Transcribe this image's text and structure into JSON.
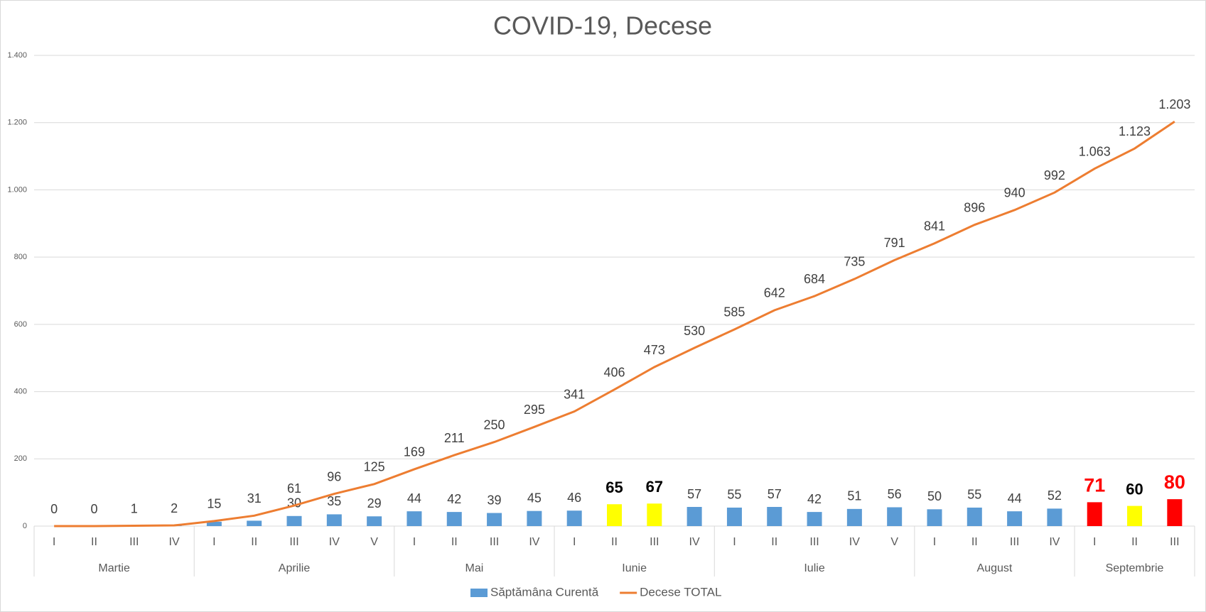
{
  "chart_data": {
    "type": "bar-line",
    "title": "COVID-19, Decese",
    "groups": [
      {
        "label": "Martie",
        "categories": [
          "I",
          "II",
          "III",
          "IV"
        ]
      },
      {
        "label": "Aprilie",
        "categories": [
          "I",
          "II",
          "III",
          "IV",
          "V"
        ]
      },
      {
        "label": "Mai",
        "categories": [
          "I",
          "II",
          "III",
          "IV"
        ]
      },
      {
        "label": "Iunie",
        "categories": [
          "I",
          "II",
          "III",
          "IV"
        ]
      },
      {
        "label": "Iulie",
        "categories": [
          "I",
          "II",
          "III",
          "IV",
          "V"
        ]
      },
      {
        "label": "August",
        "categories": [
          "I",
          "II",
          "III",
          "IV"
        ]
      },
      {
        "label": "Septembrie",
        "categories": [
          "I",
          "II",
          "III"
        ]
      }
    ],
    "series": [
      {
        "name": "Săptămâna Curentă",
        "kind": "bar",
        "color": "#5b9bd5",
        "values": [
          0,
          0,
          1,
          1,
          13,
          16,
          30,
          35,
          29,
          44,
          42,
          39,
          45,
          46,
          65,
          67,
          57,
          55,
          57,
          42,
          51,
          56,
          50,
          55,
          44,
          52,
          71,
          60,
          80
        ],
        "value_labels": [
          null,
          null,
          null,
          null,
          null,
          null,
          "30",
          "35",
          "29",
          "44",
          "42",
          "39",
          "45",
          "46",
          "65",
          "67",
          "57",
          "55",
          "57",
          "42",
          "51",
          "56",
          "50",
          "55",
          "44",
          "52",
          "71",
          "60",
          "80"
        ],
        "colors": [
          "#5b9bd5",
          "#5b9bd5",
          "#5b9bd5",
          "#5b9bd5",
          "#5b9bd5",
          "#5b9bd5",
          "#5b9bd5",
          "#5b9bd5",
          "#5b9bd5",
          "#5b9bd5",
          "#5b9bd5",
          "#5b9bd5",
          "#5b9bd5",
          "#5b9bd5",
          "#ffff00",
          "#ffff00",
          "#5b9bd5",
          "#5b9bd5",
          "#5b9bd5",
          "#5b9bd5",
          "#5b9bd5",
          "#5b9bd5",
          "#5b9bd5",
          "#5b9bd5",
          "#5b9bd5",
          "#5b9bd5",
          "#ff0000",
          "#ffff00",
          "#ff0000"
        ]
      },
      {
        "name": "Decese TOTAL",
        "kind": "line",
        "color": "#ed7d31",
        "values": [
          0,
          0,
          1,
          2,
          15,
          31,
          61,
          96,
          125,
          169,
          211,
          250,
          295,
          341,
          406,
          473,
          530,
          585,
          642,
          684,
          735,
          791,
          841,
          896,
          940,
          992,
          1063,
          1123,
          1203
        ],
        "value_labels": [
          "0",
          "0",
          "1",
          "2",
          "15",
          "31",
          "61",
          "96",
          "125",
          "169",
          "211",
          "250",
          "295",
          "341",
          "406",
          "473",
          "530",
          "585",
          "642",
          "684",
          "735",
          "791",
          "841",
          "896",
          "940",
          "992",
          "1.063",
          "1.123",
          "1.203"
        ]
      }
    ],
    "ylim": [
      0,
      1400
    ],
    "yticks": [
      0,
      200,
      400,
      600,
      800,
      {
        "value": 1000,
        "label": "1.000"
      },
      {
        "value": 1200,
        "label": "1.200"
      },
      {
        "value": 1400,
        "label": "1.400"
      }
    ],
    "grid": true,
    "legend": "bottom"
  }
}
